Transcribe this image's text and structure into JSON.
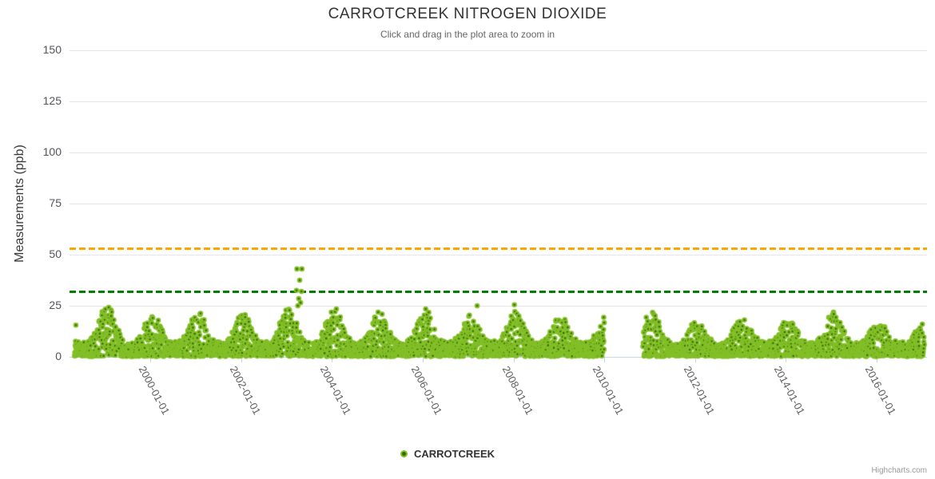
{
  "header": {
    "title": "CARROTCREEK NITROGEN DIOXIDE",
    "subtitle": "Click and drag in the plot area to zoom in"
  },
  "legend": {
    "items": [
      {
        "label": "CARROTCREEK",
        "marker_fill": "#336c00",
        "marker_ring": "#83bf27"
      }
    ]
  },
  "credits": {
    "label": "Highcharts.com"
  },
  "colors": {
    "grid": "#e6e6e6",
    "axis_line": "#ccd6eb",
    "y_tick_text": "#53535c",
    "x_tick_text": "#606060",
    "title_text": "#333333",
    "subtitle_text": "#666666",
    "marker_fill": "#336c00",
    "marker_ring": "#83bf27",
    "threshold_orange": "#ffa500",
    "threshold_green": "#008000"
  },
  "chart_data": {
    "type": "scatter",
    "title": "CARROTCREEK NITROGEN DIOXIDE",
    "subtitle": "Click and drag in the plot area to zoom in",
    "xlabel": "",
    "ylabel": "Measurements (ppb)",
    "ylim": [
      0,
      150
    ],
    "yticks": [
      0,
      25,
      50,
      75,
      100,
      125,
      150
    ],
    "xlim_years": [
      1998.22,
      2017.11
    ],
    "xticks": [
      {
        "year": 2000,
        "label": "2000-01-01"
      },
      {
        "year": 2002,
        "label": "2002-01-01"
      },
      {
        "year": 2004,
        "label": "2004-01-01"
      },
      {
        "year": 2006,
        "label": "2006-01-01"
      },
      {
        "year": 2008,
        "label": "2008-01-01"
      },
      {
        "year": 2010,
        "label": "2010-01-01"
      },
      {
        "year": 2012,
        "label": "2012-01-01"
      },
      {
        "year": 2014,
        "label": "2014-01-01"
      },
      {
        "year": 2016,
        "label": "2016-01-01"
      }
    ],
    "grid": true,
    "legend_position": "bottom-center",
    "series": [
      {
        "name": "CARROTCREEK",
        "marker_fill": "#336c00",
        "marker_ring": "#83bf27"
      }
    ],
    "threshold_lines": [
      {
        "value": 53,
        "color": "#ffa500",
        "style": "dashed"
      },
      {
        "value": 32,
        "color": "#008000",
        "style": "dashed"
      }
    ],
    "data_span_years": [
      1998.33,
      2017.05
    ],
    "data_gap_years": [
      2010.0,
      2010.85
    ],
    "summer_base_ppb": 7,
    "seasonal_winter_peaks_ppb": {
      "1998": 22,
      "1999": 25,
      "2000": 21,
      "2001": 23,
      "2002": 21,
      "2003": 24,
      "2004": 24,
      "2005": 22,
      "2006": 23,
      "2007": 21,
      "2008": 22,
      "2009": 20,
      "2010": 20,
      "2011": 22,
      "2012": 17,
      "2013": 19,
      "2014": 18,
      "2015": 23,
      "2016": 17,
      "2017": 16
    },
    "outlier_points": [
      [
        1998.36,
        15.5
      ],
      [
        2003.23,
        43
      ],
      [
        2003.34,
        43
      ],
      [
        2003.29,
        37.5
      ],
      [
        2003.22,
        32.5
      ],
      [
        2003.33,
        32
      ],
      [
        2003.27,
        28.5
      ],
      [
        2003.31,
        26.5
      ],
      [
        2003.25,
        25
      ],
      [
        2007.2,
        25
      ],
      [
        2008.02,
        25.5
      ]
    ],
    "points_per_year": 220,
    "random_seed": 20031
  }
}
